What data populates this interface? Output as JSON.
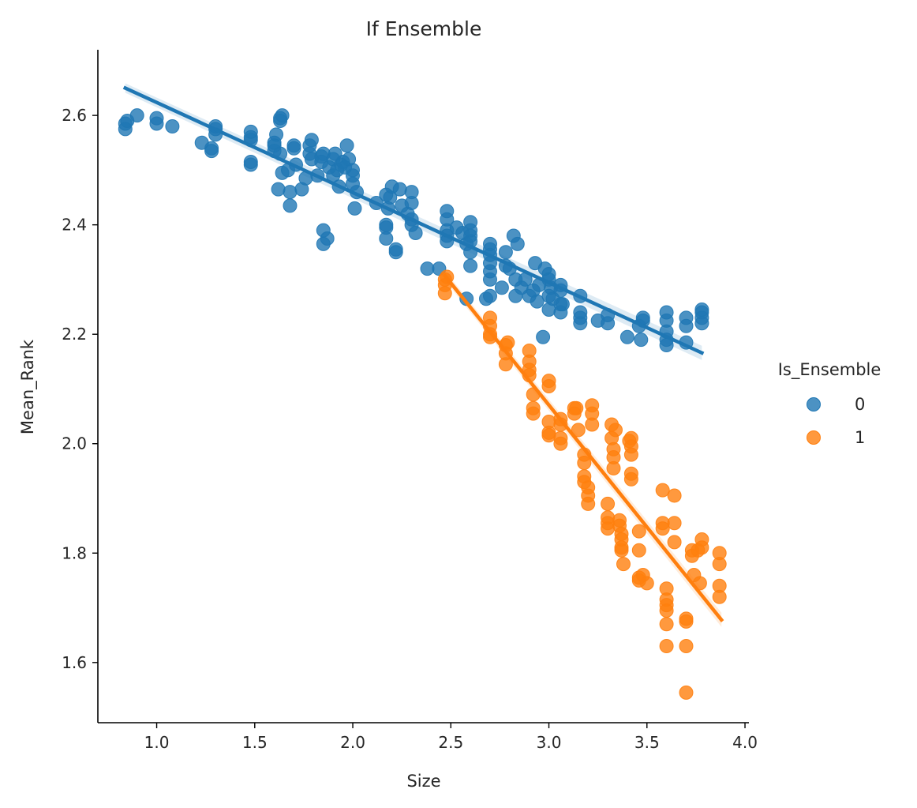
{
  "chart_data": {
    "type": "scatter",
    "title": "If Ensemble",
    "xlabel": "Size",
    "ylabel": "Mean_Rank",
    "xlim": [
      0.7,
      4.02
    ],
    "ylim": [
      1.49,
      2.72
    ],
    "xticks": [
      1.0,
      1.5,
      2.0,
      2.5,
      3.0,
      3.5,
      4.0
    ],
    "yticks": [
      1.6,
      1.8,
      2.0,
      2.2,
      2.4,
      2.6
    ],
    "grid": false,
    "legend": {
      "title": "Is_Ensemble",
      "placement": "right"
    },
    "series": [
      {
        "name": "0",
        "color": "#1f77b4",
        "regression": {
          "x": [
            0.84,
            3.78
          ],
          "y": [
            2.65,
            2.166
          ]
        },
        "points": [
          [
            0.84,
            2.575
          ],
          [
            0.84,
            2.585
          ],
          [
            0.85,
            2.59
          ],
          [
            0.9,
            2.6
          ],
          [
            1.0,
            2.585
          ],
          [
            1.0,
            2.595
          ],
          [
            1.08,
            2.58
          ],
          [
            1.23,
            2.55
          ],
          [
            1.28,
            2.535
          ],
          [
            1.28,
            2.54
          ],
          [
            1.3,
            2.565
          ],
          [
            1.3,
            2.575
          ],
          [
            1.3,
            2.58
          ],
          [
            1.48,
            2.51
          ],
          [
            1.48,
            2.515
          ],
          [
            1.48,
            2.555
          ],
          [
            1.48,
            2.56
          ],
          [
            1.48,
            2.57
          ],
          [
            1.6,
            2.535
          ],
          [
            1.6,
            2.545
          ],
          [
            1.6,
            2.55
          ],
          [
            1.61,
            2.565
          ],
          [
            1.62,
            2.465
          ],
          [
            1.63,
            2.53
          ],
          [
            1.63,
            2.59
          ],
          [
            1.63,
            2.595
          ],
          [
            1.64,
            2.6
          ],
          [
            1.64,
            2.495
          ],
          [
            1.67,
            2.5
          ],
          [
            1.68,
            2.435
          ],
          [
            1.68,
            2.46
          ],
          [
            1.7,
            2.54
          ],
          [
            1.7,
            2.545
          ],
          [
            1.71,
            2.51
          ],
          [
            1.74,
            2.465
          ],
          [
            1.76,
            2.485
          ],
          [
            1.78,
            2.53
          ],
          [
            1.78,
            2.545
          ],
          [
            1.79,
            2.555
          ],
          [
            1.79,
            2.52
          ],
          [
            1.82,
            2.49
          ],
          [
            1.84,
            2.515
          ],
          [
            1.84,
            2.525
          ],
          [
            1.85,
            2.53
          ],
          [
            1.85,
            2.365
          ],
          [
            1.85,
            2.39
          ],
          [
            1.87,
            2.375
          ],
          [
            1.88,
            2.505
          ],
          [
            1.9,
            2.49
          ],
          [
            1.9,
            2.52
          ],
          [
            1.91,
            2.53
          ],
          [
            1.92,
            2.5
          ],
          [
            1.93,
            2.47
          ],
          [
            1.94,
            2.51
          ],
          [
            1.95,
            2.515
          ],
          [
            1.96,
            2.505
          ],
          [
            1.97,
            2.545
          ],
          [
            1.98,
            2.52
          ],
          [
            2.0,
            2.475
          ],
          [
            2.0,
            2.49
          ],
          [
            2.0,
            2.5
          ],
          [
            2.01,
            2.43
          ],
          [
            2.02,
            2.46
          ],
          [
            2.12,
            2.44
          ],
          [
            2.17,
            2.375
          ],
          [
            2.17,
            2.395
          ],
          [
            2.17,
            2.4
          ],
          [
            2.17,
            2.455
          ],
          [
            2.18,
            2.43
          ],
          [
            2.19,
            2.45
          ],
          [
            2.2,
            2.47
          ],
          [
            2.22,
            2.35
          ],
          [
            2.22,
            2.355
          ],
          [
            2.24,
            2.465
          ],
          [
            2.25,
            2.435
          ],
          [
            2.28,
            2.42
          ],
          [
            2.3,
            2.4
          ],
          [
            2.3,
            2.41
          ],
          [
            2.3,
            2.44
          ],
          [
            2.3,
            2.46
          ],
          [
            2.32,
            2.385
          ],
          [
            2.38,
            2.32
          ],
          [
            2.44,
            2.32
          ],
          [
            2.48,
            2.37
          ],
          [
            2.48,
            2.38
          ],
          [
            2.48,
            2.39
          ],
          [
            2.48,
            2.41
          ],
          [
            2.48,
            2.425
          ],
          [
            2.53,
            2.395
          ],
          [
            2.56,
            2.385
          ],
          [
            2.58,
            2.265
          ],
          [
            2.58,
            2.365
          ],
          [
            2.6,
            2.35
          ],
          [
            2.6,
            2.37
          ],
          [
            2.6,
            2.38
          ],
          [
            2.6,
            2.39
          ],
          [
            2.6,
            2.405
          ],
          [
            2.6,
            2.325
          ],
          [
            2.68,
            2.265
          ],
          [
            2.7,
            2.3
          ],
          [
            2.7,
            2.315
          ],
          [
            2.7,
            2.33
          ],
          [
            2.7,
            2.345
          ],
          [
            2.7,
            2.355
          ],
          [
            2.7,
            2.365
          ],
          [
            2.7,
            2.27
          ],
          [
            2.76,
            2.285
          ],
          [
            2.78,
            2.325
          ],
          [
            2.78,
            2.35
          ],
          [
            2.8,
            2.32
          ],
          [
            2.82,
            2.38
          ],
          [
            2.83,
            2.27
          ],
          [
            2.83,
            2.3
          ],
          [
            2.84,
            2.365
          ],
          [
            2.86,
            2.285
          ],
          [
            2.88,
            2.3
          ],
          [
            2.9,
            2.27
          ],
          [
            2.92,
            2.28
          ],
          [
            2.93,
            2.33
          ],
          [
            2.94,
            2.26
          ],
          [
            2.95,
            2.29
          ],
          [
            2.97,
            2.195
          ],
          [
            2.98,
            2.32
          ],
          [
            3.0,
            2.245
          ],
          [
            3.0,
            2.27
          ],
          [
            3.0,
            2.3
          ],
          [
            3.0,
            2.31
          ],
          [
            3.01,
            2.285
          ],
          [
            3.02,
            2.265
          ],
          [
            3.06,
            2.24
          ],
          [
            3.06,
            2.255
          ],
          [
            3.06,
            2.28
          ],
          [
            3.06,
            2.29
          ],
          [
            3.07,
            2.255
          ],
          [
            3.16,
            2.27
          ],
          [
            3.16,
            2.22
          ],
          [
            3.16,
            2.23
          ],
          [
            3.16,
            2.24
          ],
          [
            3.25,
            2.225
          ],
          [
            3.3,
            2.22
          ],
          [
            3.3,
            2.235
          ],
          [
            3.4,
            2.195
          ],
          [
            3.46,
            2.215
          ],
          [
            3.47,
            2.19
          ],
          [
            3.48,
            2.225
          ],
          [
            3.48,
            2.23
          ],
          [
            3.6,
            2.18
          ],
          [
            3.6,
            2.19
          ],
          [
            3.6,
            2.205
          ],
          [
            3.6,
            2.225
          ],
          [
            3.6,
            2.24
          ],
          [
            3.7,
            2.185
          ],
          [
            3.7,
            2.215
          ],
          [
            3.7,
            2.23
          ],
          [
            3.78,
            2.22
          ],
          [
            3.78,
            2.23
          ],
          [
            3.78,
            2.24
          ],
          [
            3.78,
            2.245
          ]
        ]
      },
      {
        "name": "1",
        "color": "#ff7f0e",
        "regression": {
          "x": [
            2.47,
            3.88
          ],
          "y": [
            2.307,
            1.678
          ]
        },
        "points": [
          [
            2.47,
            2.3
          ],
          [
            2.47,
            2.29
          ],
          [
            2.47,
            2.275
          ],
          [
            2.48,
            2.305
          ],
          [
            2.7,
            2.23
          ],
          [
            2.7,
            2.215
          ],
          [
            2.7,
            2.2
          ],
          [
            2.7,
            2.195
          ],
          [
            2.78,
            2.18
          ],
          [
            2.78,
            2.165
          ],
          [
            2.78,
            2.145
          ],
          [
            2.79,
            2.185
          ],
          [
            2.9,
            2.17
          ],
          [
            2.9,
            2.15
          ],
          [
            2.9,
            2.135
          ],
          [
            2.9,
            2.125
          ],
          [
            2.92,
            2.09
          ],
          [
            2.92,
            2.065
          ],
          [
            2.92,
            2.055
          ],
          [
            3.0,
            2.115
          ],
          [
            3.0,
            2.105
          ],
          [
            3.0,
            2.04
          ],
          [
            3.0,
            2.02
          ],
          [
            3.0,
            2.015
          ],
          [
            3.06,
            2.045
          ],
          [
            3.06,
            2.035
          ],
          [
            3.06,
            2.0
          ],
          [
            3.06,
            2.01
          ],
          [
            3.13,
            2.065
          ],
          [
            3.13,
            2.055
          ],
          [
            3.14,
            2.065
          ],
          [
            3.15,
            2.025
          ],
          [
            3.18,
            1.98
          ],
          [
            3.18,
            1.965
          ],
          [
            3.18,
            1.94
          ],
          [
            3.18,
            1.93
          ],
          [
            3.2,
            1.92
          ],
          [
            3.2,
            1.905
          ],
          [
            3.2,
            1.89
          ],
          [
            3.22,
            2.07
          ],
          [
            3.22,
            2.055
          ],
          [
            3.22,
            2.035
          ],
          [
            3.3,
            1.89
          ],
          [
            3.3,
            1.865
          ],
          [
            3.3,
            1.855
          ],
          [
            3.3,
            1.845
          ],
          [
            3.32,
            2.035
          ],
          [
            3.32,
            2.01
          ],
          [
            3.33,
            1.99
          ],
          [
            3.33,
            1.975
          ],
          [
            3.33,
            1.955
          ],
          [
            3.34,
            2.025
          ],
          [
            3.36,
            1.86
          ],
          [
            3.36,
            1.85
          ],
          [
            3.37,
            1.835
          ],
          [
            3.37,
            1.825
          ],
          [
            3.37,
            1.81
          ],
          [
            3.37,
            1.805
          ],
          [
            3.38,
            1.78
          ],
          [
            3.41,
            2.005
          ],
          [
            3.42,
            2.01
          ],
          [
            3.42,
            1.995
          ],
          [
            3.42,
            1.98
          ],
          [
            3.42,
            1.945
          ],
          [
            3.42,
            1.935
          ],
          [
            3.46,
            1.84
          ],
          [
            3.46,
            1.805
          ],
          [
            3.46,
            1.755
          ],
          [
            3.46,
            1.75
          ],
          [
            3.48,
            1.76
          ],
          [
            3.5,
            1.745
          ],
          [
            3.58,
            1.915
          ],
          [
            3.58,
            1.855
          ],
          [
            3.58,
            1.845
          ],
          [
            3.6,
            1.735
          ],
          [
            3.6,
            1.715
          ],
          [
            3.6,
            1.705
          ],
          [
            3.6,
            1.695
          ],
          [
            3.6,
            1.67
          ],
          [
            3.6,
            1.63
          ],
          [
            3.64,
            1.905
          ],
          [
            3.64,
            1.855
          ],
          [
            3.64,
            1.82
          ],
          [
            3.7,
            1.68
          ],
          [
            3.7,
            1.675
          ],
          [
            3.7,
            1.63
          ],
          [
            3.7,
            1.545
          ],
          [
            3.73,
            1.805
          ],
          [
            3.73,
            1.795
          ],
          [
            3.74,
            1.76
          ],
          [
            3.76,
            1.805
          ],
          [
            3.77,
            1.745
          ],
          [
            3.78,
            1.825
          ],
          [
            3.78,
            1.81
          ],
          [
            3.87,
            1.8
          ],
          [
            3.87,
            1.78
          ],
          [
            3.87,
            1.74
          ],
          [
            3.87,
            1.72
          ]
        ]
      }
    ]
  }
}
